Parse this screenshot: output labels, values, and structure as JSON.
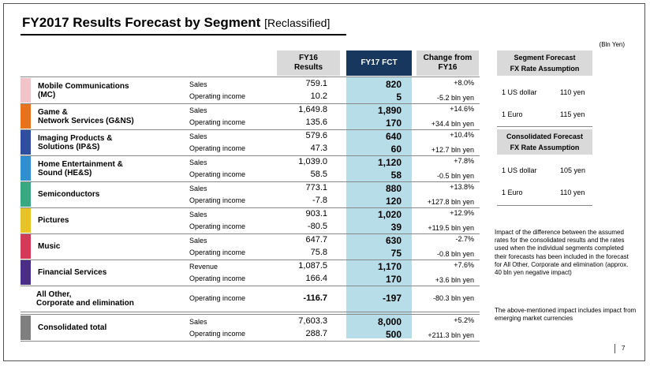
{
  "title": "FY2017 Results Forecast by Segment",
  "title_sub": "[Reclassified]",
  "unit": "(Bln Yen)",
  "columns": {
    "fy16": "FY16\nResults",
    "fy17": "FY17 FCT",
    "change": "Change from\nFY16"
  },
  "segments": [
    {
      "name": "Mobile Communications\n(MC)",
      "color": "#f2c4c9",
      "rows": [
        {
          "label": "Sales",
          "fy16": "759.1",
          "fy17": "820",
          "change": "+8.0%"
        },
        {
          "label": "Operating income",
          "fy16": "10.2",
          "fy17": "5",
          "change": "-5.2 bln yen"
        }
      ]
    },
    {
      "name": "Game &\nNetwork Services (G&NS)",
      "color": "#e8731a",
      "rows": [
        {
          "label": "Sales",
          "fy16": "1,649.8",
          "fy17": "1,890",
          "change": "+14.6%"
        },
        {
          "label": "Operating income",
          "fy16": "135.6",
          "fy17": "170",
          "change": "+34.4 bln yen"
        }
      ]
    },
    {
      "name": "Imaging Products &\nSolutions (IP&S)",
      "color": "#2e4ea0",
      "rows": [
        {
          "label": "Sales",
          "fy16": "579.6",
          "fy17": "640",
          "change": "+10.4%"
        },
        {
          "label": "Operating income",
          "fy16": "47.3",
          "fy17": "60",
          "change": "+12.7 bln yen"
        }
      ]
    },
    {
      "name": "Home Entertainment &\nSound (HE&S)",
      "color": "#2f8fd0",
      "rows": [
        {
          "label": "Sales",
          "fy16": "1,039.0",
          "fy17": "1,120",
          "change": "+7.8%"
        },
        {
          "label": "Operating income",
          "fy16": "58.5",
          "fy17": "58",
          "change": "-0.5 bln yen"
        }
      ]
    },
    {
      "name": "Semiconductors",
      "color": "#38a882",
      "rows": [
        {
          "label": "Sales",
          "fy16": "773.1",
          "fy17": "880",
          "change": "+13.8%"
        },
        {
          "label": "Operating income",
          "fy16": "-7.8",
          "fy17": "120",
          "change": "+127.8 bln yen"
        }
      ]
    },
    {
      "name": "Pictures",
      "color": "#e9c22a",
      "rows": [
        {
          "label": "Sales",
          "fy16": "903.1",
          "fy17": "1,020",
          "change": "+12.9%"
        },
        {
          "label": "Operating income",
          "fy16": "-80.5",
          "fy17": "39",
          "change": "+119.5 bln yen"
        }
      ]
    },
    {
      "name": "Music",
      "color": "#d23b57",
      "rows": [
        {
          "label": "Sales",
          "fy16": "647.7",
          "fy17": "630",
          "change": "-2.7%"
        },
        {
          "label": "Operating income",
          "fy16": "75.8",
          "fy17": "75",
          "change": "-0.8 bln yen"
        }
      ]
    },
    {
      "name": "Financial Services",
      "color": "#4a2d87",
      "rows": [
        {
          "label": "Revenue",
          "fy16": "1,087.5",
          "fy17": "1,170",
          "change": "+7.6%"
        },
        {
          "label": "Operating income",
          "fy16": "166.4",
          "fy17": "170",
          "change": "+3.6 bln yen"
        }
      ]
    }
  ],
  "all_other": {
    "name": "All Other,\nCorporate and elimination",
    "label": "Operating income",
    "fy16": "-116.7",
    "fy17": "-197",
    "change": "-80.3 bln yen"
  },
  "consolidated": {
    "name": "Consolidated total",
    "color": "#7f7f7f",
    "rows": [
      {
        "label": "Sales",
        "fy16": "7,603.3",
        "fy17": "8,000",
        "change": "+5.2%"
      },
      {
        "label": "Operating income",
        "fy16": "288.7",
        "fy17": "500",
        "change": "+211.3 bln yen"
      }
    ]
  },
  "fx_segment": {
    "title": "Segment Forecast\nFX Rate Assumption",
    "rows": [
      {
        "k": "1 US dollar",
        "v": "110 yen"
      },
      {
        "k": "1 Euro",
        "v": "115 yen"
      }
    ]
  },
  "fx_consolidated": {
    "title": "Consolidated Forecast\nFX Rate Assumption",
    "rows": [
      {
        "k": "1 US dollar",
        "v": "105 yen"
      },
      {
        "k": "1 Euro",
        "v": "110 yen"
      }
    ]
  },
  "note1": "Impact of the difference between the assumed rates for the consolidated results and the rates used when the individual segments completed their forecasts has been included in the forecast for All Other, Corporate and elimination (approx. 40 bln yen negative impact)",
  "note2": "The above-mentioned impact includes impact from emerging market currencies",
  "page_number": "7"
}
